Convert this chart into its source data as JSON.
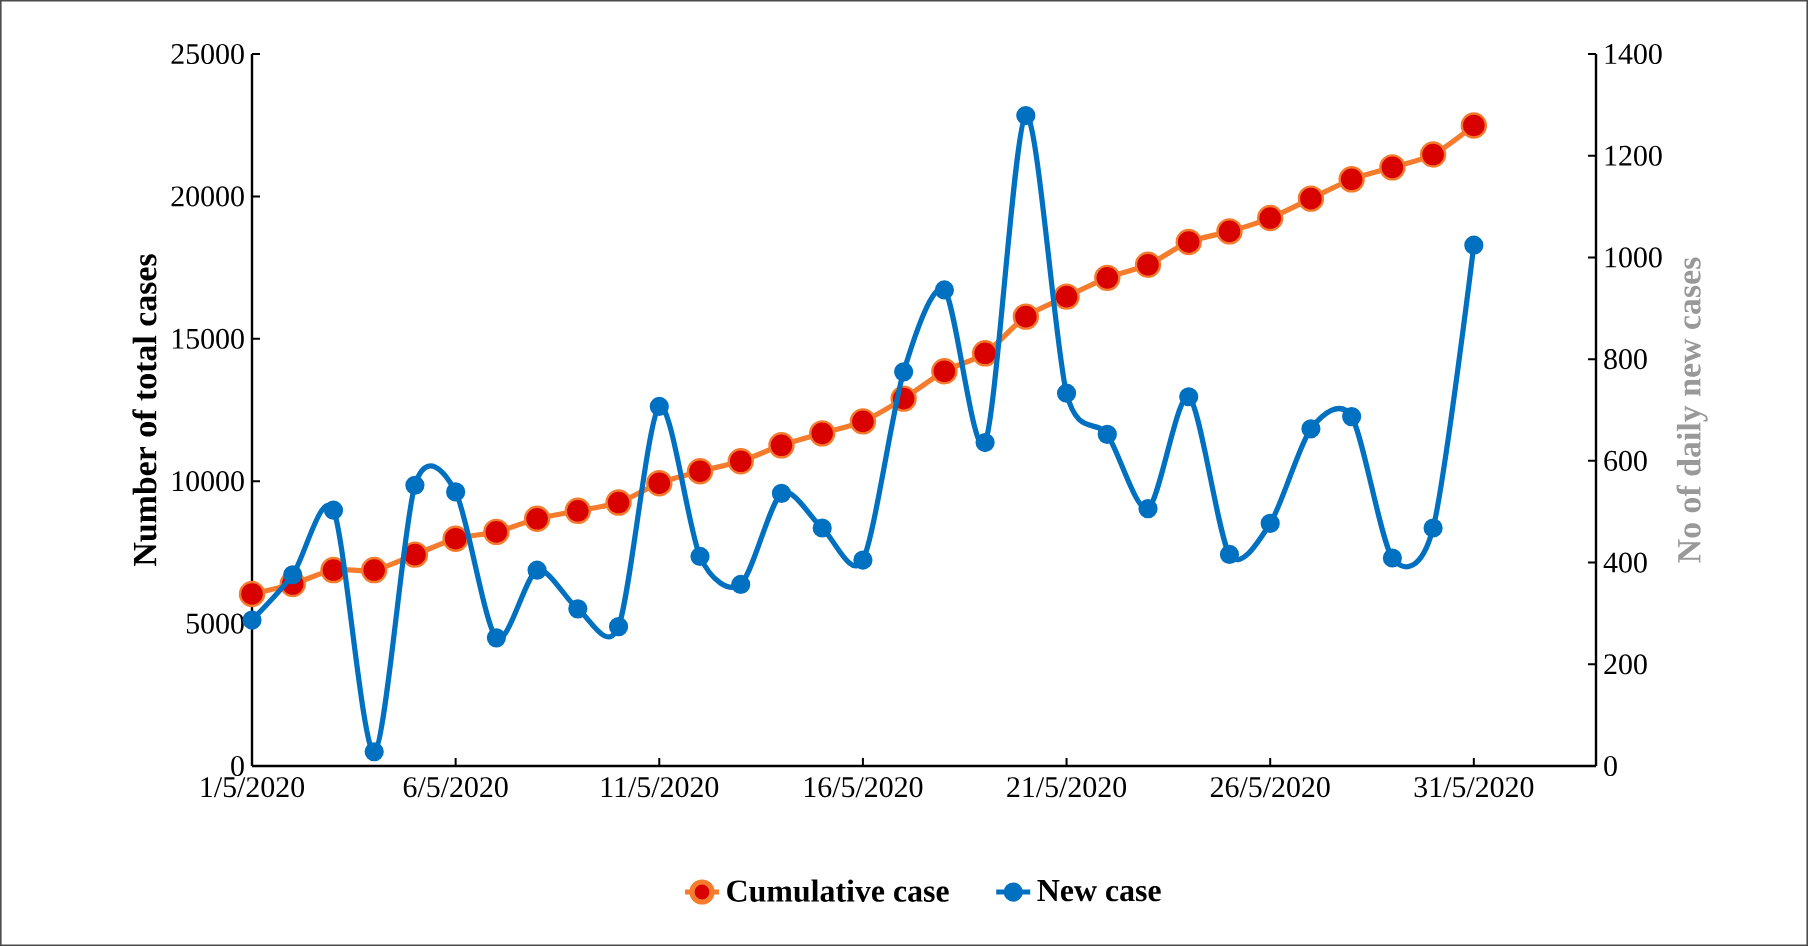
{
  "chart_data": {
    "type": "line",
    "ylabel": "Number of total cases",
    "y2label": "No of daily new cases",
    "x": [
      "2020-05-01",
      "2020-05-02",
      "2020-05-03",
      "2020-05-04",
      "2020-05-05",
      "2020-05-06",
      "2020-05-07",
      "2020-05-08",
      "2020-05-09",
      "2020-05-10",
      "2020-05-11",
      "2020-05-12",
      "2020-05-13",
      "2020-05-14",
      "2020-05-15",
      "2020-05-16",
      "2020-05-17",
      "2020-05-18",
      "2020-05-19",
      "2020-05-20",
      "2020-05-21",
      "2020-05-22",
      "2020-05-23",
      "2020-05-24",
      "2020-05-25",
      "2020-05-26",
      "2020-05-27",
      "2020-05-28",
      "2020-05-29",
      "2020-05-30",
      "2020-05-31"
    ],
    "xlim": [
      "2020-05-01",
      "2020-06-03"
    ],
    "xticks": [
      {
        "value": "2020-05-01",
        "label": "1/5/2020"
      },
      {
        "value": "2020-05-06",
        "label": "6/5/2020"
      },
      {
        "value": "2020-05-11",
        "label": "11/5/2020"
      },
      {
        "value": "2020-05-16",
        "label": "16/5/2020"
      },
      {
        "value": "2020-05-21",
        "label": "21/5/2020"
      },
      {
        "value": "2020-05-26",
        "label": "26/5/2020"
      },
      {
        "value": "2020-05-31",
        "label": "31/5/2020"
      }
    ],
    "ylim": [
      0,
      25000
    ],
    "yticks": [
      0,
      5000,
      10000,
      15000,
      20000,
      25000
    ],
    "y2lim": [
      0,
      1400
    ],
    "y2ticks": [
      0,
      200,
      400,
      600,
      800,
      1000,
      1200,
      1400
    ],
    "marker": "circle",
    "legend": "bottom",
    "series": [
      {
        "name": "Cumulative case",
        "color": "#f47c2c",
        "values": [
          6040,
          6390,
          6880,
          6880,
          7420,
          7980,
          8220,
          8680,
          8960,
          9250,
          9930,
          10350,
          10700,
          11260,
          11680,
          12100,
          12900,
          13860,
          14490,
          15780,
          16480,
          17140,
          17600,
          18400,
          18770,
          19240,
          19920,
          20600,
          21020,
          21470,
          22490
        ]
      },
      {
        "name": "New case",
        "color": "#0070c0",
        "axis": "y2",
        "values": [
          287,
          376,
          503,
          28,
          552,
          539,
          252,
          385,
          309,
          274,
          707,
          412,
          357,
          536,
          468,
          405,
          775,
          936,
          636,
          1279,
          733,
          652,
          506,
          726,
          416,
          477,
          663,
          687,
          409,
          468,
          1024
        ]
      }
    ]
  }
}
